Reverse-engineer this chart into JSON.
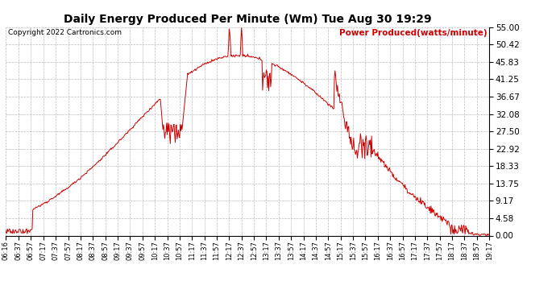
{
  "title": "Daily Energy Produced Per Minute (Wm) Tue Aug 30 19:29",
  "copyright": "Copyright 2022 Cartronics.com",
  "legend_label": "Power Produced(watts/minute)",
  "line_color": "#cc0000",
  "background_color": "#ffffff",
  "grid_color": "#bbbbbb",
  "yticks": [
    0.0,
    4.58,
    9.17,
    13.75,
    18.33,
    22.92,
    27.5,
    32.08,
    36.67,
    41.25,
    45.83,
    50.42,
    55.0
  ],
  "ymax": 55.0,
  "ymin": 0.0,
  "xtick_labels": [
    "06:16",
    "06:37",
    "06:57",
    "07:17",
    "07:37",
    "07:57",
    "08:17",
    "08:37",
    "08:57",
    "09:17",
    "09:37",
    "09:57",
    "10:17",
    "10:37",
    "10:57",
    "11:17",
    "11:37",
    "11:57",
    "12:17",
    "12:37",
    "12:57",
    "13:17",
    "13:37",
    "13:57",
    "14:17",
    "14:37",
    "14:57",
    "15:17",
    "15:37",
    "15:57",
    "16:17",
    "16:37",
    "16:57",
    "17:17",
    "17:37",
    "17:57",
    "18:17",
    "18:37",
    "18:57",
    "19:17"
  ]
}
